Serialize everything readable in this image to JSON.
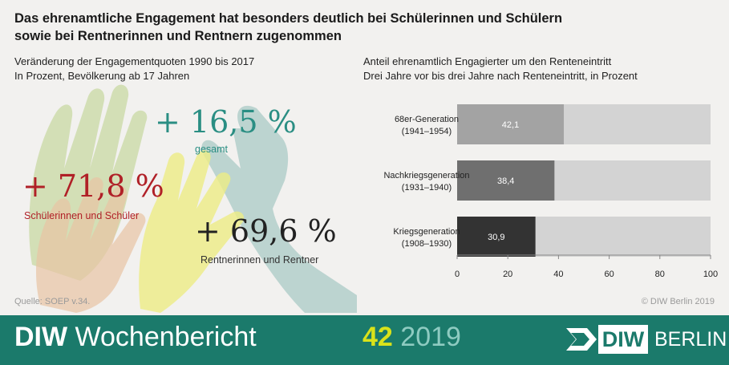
{
  "title": {
    "line1": "Das ehrenamtliche Engagement hat besonders deutlich bei Schülerinnen und Schülern",
    "line2": "sowie bei Rentnerinnen und Rentnern zugenommen"
  },
  "left_panel": {
    "title": "Veränderung der Engagementquoten 1990 bis 2017",
    "subtitle": "In Prozent, Bevölkerung ab 17 Jahren",
    "stats": [
      {
        "value": "+ 16,5 %",
        "label": "gesamt",
        "color": "#2a8e83"
      },
      {
        "value": "+ 71,8 %",
        "label": "Schülerinnen und Schüler",
        "color": "#b02027"
      },
      {
        "value": "+ 69,6 %",
        "label": "Rentnerinnen und Rentner",
        "color": "#222222"
      }
    ],
    "hand_colors": {
      "green": "#b9cf86",
      "teal": "#a9c9c6",
      "orange": "#e8c3a4",
      "yellow": "#ecec85"
    }
  },
  "right_panel": {
    "title": "Anteil ehrenamtlich Engagierter um den Renteneintritt",
    "subtitle": "Drei Jahre vor bis drei Jahre nach Renteneintritt, in Prozent"
  },
  "chart_data": {
    "type": "bar",
    "orientation": "horizontal",
    "categories": [
      {
        "name": "68er-Generation",
        "years": "(1941–1954)"
      },
      {
        "name": "Nachkriegsgeneration",
        "years": "(1931–1940)"
      },
      {
        "name": "Kriegsgeneration",
        "years": "(1908–1930)"
      }
    ],
    "values": [
      42.1,
      38.4,
      30.9
    ],
    "value_labels": [
      "42,1",
      "38,4",
      "30,9"
    ],
    "bar_colors": [
      "#a3a3a3",
      "#6f6f6f",
      "#333333"
    ],
    "background_color": "#d3d3d3",
    "xlim": [
      0,
      100
    ],
    "xticks": [
      0,
      20,
      40,
      60,
      80,
      100
    ]
  },
  "source": "Quelle: SOEP v.34.",
  "credit": "© DIW Berlin 2019",
  "footer": {
    "brand_bold": "DIW",
    "brand_rest": "Wochenbericht",
    "issue_number": "42",
    "issue_year": "2019",
    "logo_diw": "DIW",
    "logo_city": "BERLIN"
  }
}
